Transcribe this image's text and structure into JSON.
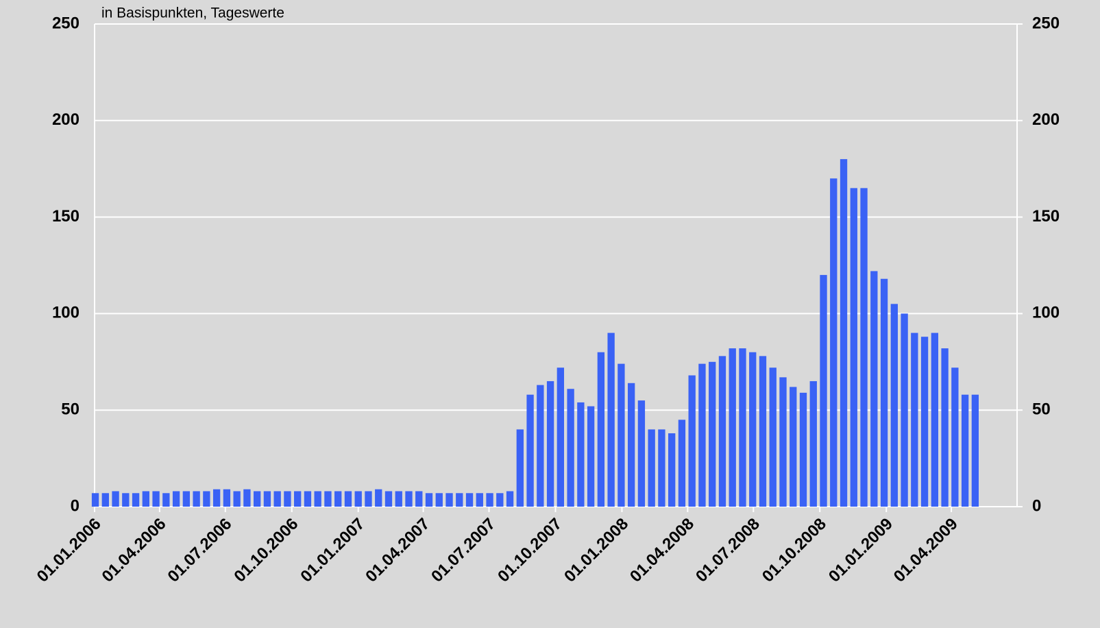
{
  "chart_data": {
    "type": "bar",
    "subtitle": "in Basispunkten, Tageswerte",
    "color": "#3a62f5",
    "grid": true,
    "x": [
      "2006-01-02",
      "2006-01-16",
      "2006-01-30",
      "2006-02-13",
      "2006-02-27",
      "2006-03-13",
      "2006-03-27",
      "2006-04-10",
      "2006-04-24",
      "2006-05-08",
      "2006-05-22",
      "2006-06-05",
      "2006-06-19",
      "2006-07-03",
      "2006-07-17",
      "2006-07-31",
      "2006-08-14",
      "2006-08-28",
      "2006-09-11",
      "2006-09-25",
      "2006-10-09",
      "2006-10-23",
      "2006-11-06",
      "2006-11-20",
      "2006-12-04",
      "2006-12-18",
      "2007-01-01",
      "2007-01-15",
      "2007-01-29",
      "2007-02-12",
      "2007-02-26",
      "2007-03-12",
      "2007-03-26",
      "2007-04-09",
      "2007-04-23",
      "2007-05-07",
      "2007-05-21",
      "2007-06-04",
      "2007-06-18",
      "2007-07-02",
      "2007-07-16",
      "2007-07-30",
      "2007-08-13",
      "2007-08-27",
      "2007-09-10",
      "2007-09-24",
      "2007-10-08",
      "2007-10-22",
      "2007-11-05",
      "2007-11-19",
      "2007-12-03",
      "2007-12-17",
      "2007-12-31",
      "2008-01-14",
      "2008-01-28",
      "2008-02-11",
      "2008-02-25",
      "2008-03-10",
      "2008-03-24",
      "2008-04-07",
      "2008-04-21",
      "2008-05-05",
      "2008-05-19",
      "2008-06-02",
      "2008-06-16",
      "2008-06-30",
      "2008-07-14",
      "2008-07-28",
      "2008-08-11",
      "2008-08-25",
      "2008-09-08",
      "2008-09-22",
      "2008-10-06",
      "2008-10-20",
      "2008-11-03",
      "2008-11-17",
      "2008-12-01",
      "2008-12-15",
      "2008-12-29",
      "2009-01-12",
      "2009-01-26",
      "2009-02-09",
      "2009-02-23",
      "2009-03-09",
      "2009-03-23",
      "2009-04-06",
      "2009-04-20",
      "2009-05-04"
    ],
    "values": [
      7,
      7,
      8,
      7,
      7,
      8,
      8,
      7,
      8,
      8,
      8,
      8,
      9,
      9,
      8,
      9,
      8,
      8,
      8,
      8,
      8,
      8,
      8,
      8,
      8,
      8,
      8,
      8,
      9,
      8,
      8,
      8,
      8,
      7,
      7,
      7,
      7,
      7,
      7,
      7,
      7,
      8,
      40,
      58,
      63,
      65,
      72,
      61,
      54,
      52,
      80,
      90,
      74,
      64,
      55,
      40,
      40,
      38,
      45,
      68,
      74,
      75,
      78,
      82,
      82,
      80,
      78,
      72,
      67,
      62,
      59,
      65,
      120,
      170,
      180,
      165,
      165,
      122,
      118,
      105,
      100,
      90,
      88,
      90,
      82,
      72,
      58,
      58
    ],
    "xlim": [
      "2006-01-01",
      "2009-07-01"
    ],
    "xticks": [
      {
        "value": "2006-01-01",
        "label": "01.01.2006"
      },
      {
        "value": "2006-04-01",
        "label": "01.04.2006"
      },
      {
        "value": "2006-07-01",
        "label": "01.07.2006"
      },
      {
        "value": "2006-10-01",
        "label": "01.10.2006"
      },
      {
        "value": "2007-01-01",
        "label": "01.01.2007"
      },
      {
        "value": "2007-04-01",
        "label": "01.04.2007"
      },
      {
        "value": "2007-07-01",
        "label": "01.07.2007"
      },
      {
        "value": "2007-10-01",
        "label": "01.10.2007"
      },
      {
        "value": "2008-01-01",
        "label": "01.01.2008"
      },
      {
        "value": "2008-04-01",
        "label": "01.04.2008"
      },
      {
        "value": "2008-07-01",
        "label": "01.07.2008"
      },
      {
        "value": "2008-10-01",
        "label": "01.10.2008"
      },
      {
        "value": "2009-01-01",
        "label": "01.01.2009"
      },
      {
        "value": "2009-04-01",
        "label": "01.04.2009"
      }
    ],
    "ylim": [
      0,
      250
    ],
    "yticks": [
      0,
      50,
      100,
      150,
      200,
      250
    ],
    "y2lim": [
      0,
      250
    ],
    "y2ticks": [
      0,
      50,
      100,
      150,
      200,
      250
    ]
  }
}
